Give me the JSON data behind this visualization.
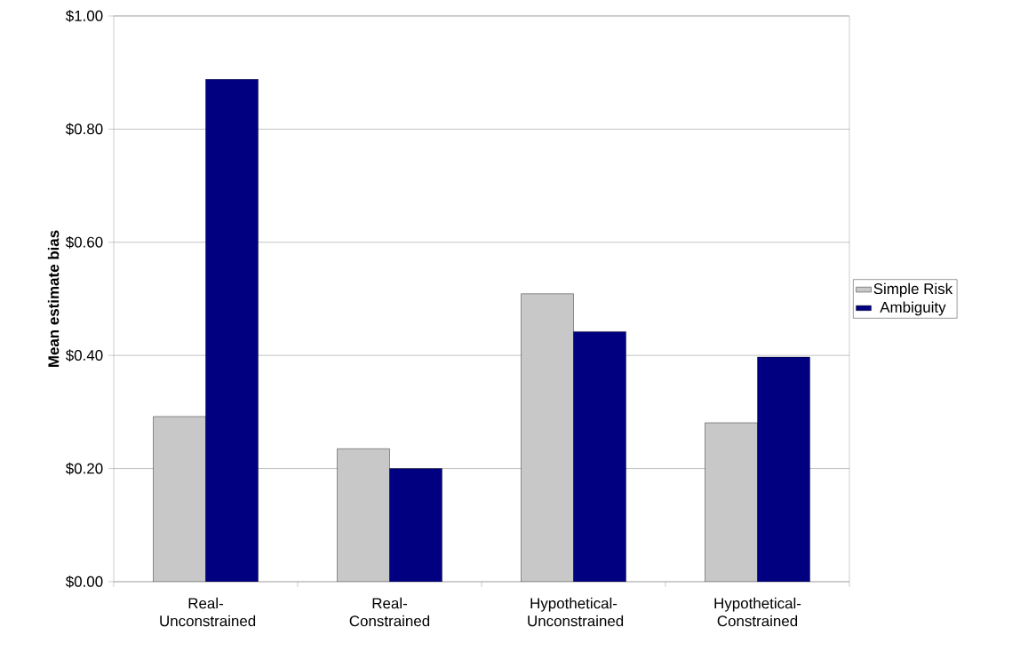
{
  "chart_data": {
    "type": "bar",
    "ylabel": "Mean estimate bias",
    "categories": [
      "Real-Unconstrained",
      "Real-Constrained",
      "Hypothetical-Unconstrained",
      "Hypothetical-Constrained"
    ],
    "series": [
      {
        "name": "Simple Risk",
        "color": "#c8c8c8",
        "values": [
          0.292,
          0.235,
          0.509,
          0.281
        ]
      },
      {
        "name": "Ambiguity",
        "color": "#000080",
        "values": [
          0.888,
          0.2,
          0.442,
          0.397
        ]
      }
    ],
    "ylim": [
      0,
      1
    ],
    "yticks": [
      {
        "value": 0,
        "label": "$0.00"
      },
      {
        "value": 0.2,
        "label": "$0.20"
      },
      {
        "value": 0.4,
        "label": "$0.40"
      },
      {
        "value": 0.6,
        "label": "$0.60"
      },
      {
        "value": 0.8,
        "label": "$0.80"
      },
      {
        "value": 1,
        "label": "$1.00"
      }
    ],
    "grid": "y",
    "legend": "right"
  }
}
